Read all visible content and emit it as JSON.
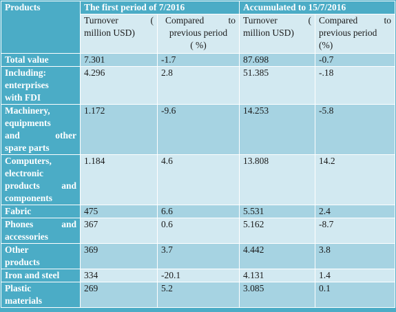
{
  "header": {
    "products": "Products",
    "period1": "The first period of 7/2016",
    "period2": "Accumulated to 15/7/2016"
  },
  "subheader": {
    "turnover_1a": "Turnover",
    "turnover_1b": "(",
    "turnover_2": "million USD)",
    "compared_1a": "Compared",
    "compared_1b": "to",
    "compared_2": "previous period",
    "compared_3a": "( %)",
    "compared_3b": "(%)"
  },
  "rows": [
    {
      "label": [
        "Total value"
      ],
      "t1": "7.301",
      "c1": "-1.7",
      "t2": "87.698",
      "c2": "-0.7"
    },
    {
      "label": [
        "Including:",
        "enterprises",
        "with FDI"
      ],
      "t1": "4.296",
      "c1": "2.8",
      "t2": "51.385",
      "c2": "-.18"
    },
    {
      "label": [
        "Machinery,",
        "equipments",
        "and other",
        "spare parts"
      ],
      "t1": "1.172",
      "c1": "-9.6",
      "t2": "14.253",
      "c2": "-5.8"
    },
    {
      "label": [
        "Computers,",
        "electronic",
        "products and",
        "components"
      ],
      "t1": "1.184",
      "c1": "4.6",
      "t2": "13.808",
      "c2": "14.2"
    },
    {
      "label": [
        "Fabric"
      ],
      "t1": "475",
      "c1": "6.6",
      "t2": "5.531",
      "c2": "2.4"
    },
    {
      "label": [
        "Phones and",
        "accessories"
      ],
      "t1": "367",
      "c1": "0.6",
      "t2": "5.162",
      "c2": "-8.7"
    },
    {
      "label": [
        "Other",
        "products"
      ],
      "t1": "369",
      "c1": "3.7",
      "t2": "4.442",
      "c2": "3.8"
    },
    {
      "label": [
        "Iron and steel"
      ],
      "t1": "334",
      "c1": "-20.1",
      "t2": "4.131",
      "c2": "1.4"
    },
    {
      "label": [
        "Plastic",
        "materials"
      ],
      "t1": "269",
      "c1": "5.2",
      "t2": "3.085",
      "c2": "0.1"
    }
  ]
}
